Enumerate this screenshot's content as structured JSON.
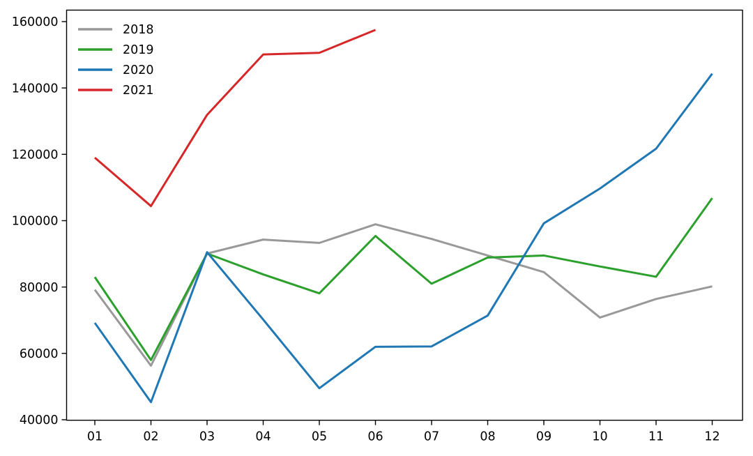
{
  "chart_data": {
    "type": "line",
    "title": "",
    "xlabel": "",
    "ylabel": "",
    "categories": [
      "01",
      "02",
      "03",
      "04",
      "05",
      "06",
      "07",
      "08",
      "09",
      "10",
      "11",
      "12"
    ],
    "ylim": [
      40000,
      160000
    ],
    "yticks": [
      40000,
      60000,
      80000,
      100000,
      120000,
      140000,
      160000
    ],
    "ytick_labels": [
      "40000",
      "60000",
      "80000",
      "100000",
      "120000",
      "140000",
      "160000"
    ],
    "grid": false,
    "legend_position": "upper-left",
    "legend_frame": false,
    "series": [
      {
        "name": "2018",
        "color": "#999999",
        "values": [
          79200,
          56300,
          90100,
          94300,
          93300,
          98900,
          94500,
          89500,
          84500,
          70800,
          76400,
          80200
        ]
      },
      {
        "name": "2019",
        "color": "#2ca02c",
        "values": [
          83000,
          58000,
          90100,
          83800,
          78100,
          95400,
          81000,
          88900,
          89500,
          86200,
          83100,
          106800
        ]
      },
      {
        "name": "2020",
        "color": "#1f77b4",
        "values": [
          69200,
          45300,
          90500,
          70200,
          49500,
          62000,
          62100,
          71400,
          99200,
          109700,
          121700,
          144300
        ]
      },
      {
        "name": "2021",
        "color": "#d62728",
        "values": [
          119000,
          104400,
          131900,
          150100,
          150600,
          157500
        ]
      }
    ]
  },
  "colors": {
    "background": "#ffffff",
    "axis": "#000000",
    "tick_text": "#000000"
  }
}
